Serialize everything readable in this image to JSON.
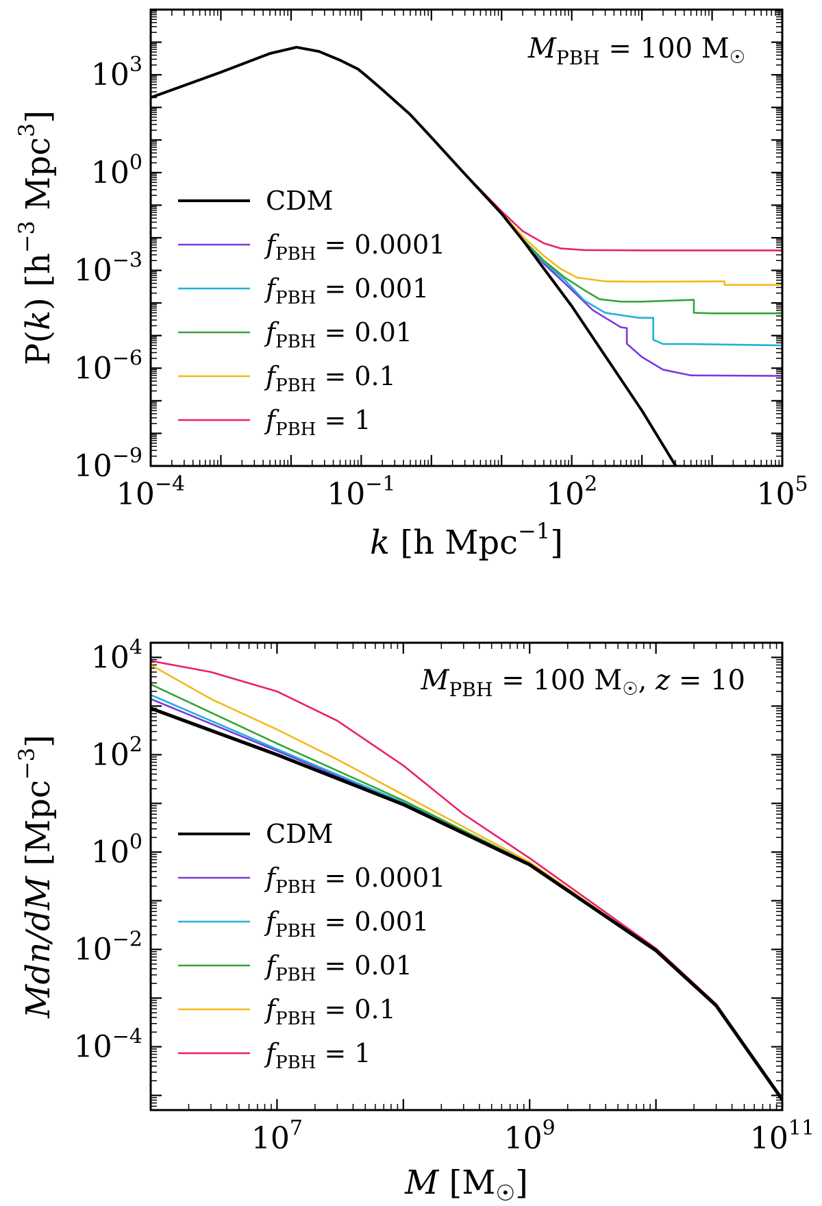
{
  "colors": {
    "CDM": "#000000",
    "f0.0001": "#7a37e0",
    "f0.001": "#1fb2d8",
    "f0.01": "#35a33a",
    "f0.1": "#f4b81a",
    "f1": "#ea1f6b"
  },
  "chart_data": [
    {
      "type": "line",
      "id": "power_spectrum",
      "title": "",
      "annotation": "M_PBH = 100 M☉",
      "annotation_parts": {
        "symbol": "M",
        "sub": "PBH",
        "eq": " = 100 M",
        "sun": "☉"
      },
      "xlabel": "k [h Mpc⁻¹]",
      "xlabel_parts": {
        "var": "k",
        "text": " [h Mpc",
        "sup": "−1",
        "close": "]"
      },
      "ylabel": "P(k) [h⁻³ Mpc³]",
      "ylabel_parts": {
        "a": "P(",
        "var": "k",
        "b": ") [h",
        "sup1": "−3",
        "c": " Mpc",
        "sup2": "3",
        "d": "]"
      },
      "xscale": "log",
      "yscale": "log",
      "xlim": [
        0.0001,
        100000
      ],
      "ylim": [
        1e-09,
        100000.0
      ],
      "xticks": [
        {
          "value": 0.0001,
          "base": "10",
          "exp": "−4"
        },
        {
          "value": 0.1,
          "base": "10",
          "exp": "−1"
        },
        {
          "value": 100,
          "base": "10",
          "exp": "2"
        },
        {
          "value": 100000,
          "base": "10",
          "exp": "5"
        }
      ],
      "yticks": [
        {
          "value": 1e-09,
          "base": "10",
          "exp": "−9"
        },
        {
          "value": 1e-06,
          "base": "10",
          "exp": "−6"
        },
        {
          "value": 0.001,
          "base": "10",
          "exp": "−3"
        },
        {
          "value": 1,
          "base": "10",
          "exp": "0"
        },
        {
          "value": 1000,
          "base": "10",
          "exp": "3"
        }
      ],
      "legend_position": "middle-left",
      "series": [
        {
          "name": "CDM",
          "label": "CDM",
          "color_key": "CDM",
          "width": 4,
          "points": [
            [
              0.0001,
              200
            ],
            [
              0.001,
              1200
            ],
            [
              0.005,
              4500
            ],
            [
              0.012,
              7000
            ],
            [
              0.025,
              5200
            ],
            [
              0.05,
              2800
            ],
            [
              0.09,
              1500
            ],
            [
              0.12,
              900
            ],
            [
              0.2,
              350
            ],
            [
              0.5,
              60
            ],
            [
              1,
              12
            ],
            [
              3,
              0.9
            ],
            [
              10,
              0.055
            ],
            [
              20,
              0.0085
            ],
            [
              100,
              8e-05
            ],
            [
              1000,
              5e-08
            ],
            [
              10000,
              1.5e-11
            ]
          ]
        },
        {
          "name": "f_PBH = 0.0001",
          "label_value": "0.0001",
          "color_key": "f0.0001",
          "width": 2.6,
          "points": [
            [
              0.0001,
              200
            ],
            [
              0.001,
              1200
            ],
            [
              0.005,
              4500
            ],
            [
              0.012,
              7000
            ],
            [
              0.025,
              5200
            ],
            [
              0.05,
              2800
            ],
            [
              0.09,
              1500
            ],
            [
              0.12,
              900
            ],
            [
              0.2,
              350
            ],
            [
              0.5,
              60
            ],
            [
              1,
              12
            ],
            [
              3,
              0.9
            ],
            [
              10,
              0.055
            ],
            [
              20,
              0.0086
            ],
            [
              40,
              0.0016
            ],
            [
              80,
              0.0004
            ],
            [
              200,
              6e-05
            ],
            [
              500,
              1.8e-05
            ],
            [
              610,
              1.7e-05
            ],
            [
              610,
              5.6e-06
            ],
            [
              1000,
              2.2e-06
            ],
            [
              2000,
              9e-07
            ],
            [
              5000,
              6e-07
            ],
            [
              100000,
              5.8e-07
            ]
          ]
        },
        {
          "name": "f_PBH = 0.001",
          "label_value": "0.001",
          "color_key": "f0.001",
          "width": 2.6,
          "points": [
            [
              0.0001,
              200
            ],
            [
              0.001,
              1200
            ],
            [
              0.005,
              4500
            ],
            [
              0.012,
              7000
            ],
            [
              0.025,
              5200
            ],
            [
              0.05,
              2800
            ],
            [
              0.09,
              1500
            ],
            [
              0.12,
              900
            ],
            [
              0.2,
              350
            ],
            [
              0.5,
              60
            ],
            [
              1,
              12
            ],
            [
              3,
              0.9
            ],
            [
              10,
              0.055
            ],
            [
              20,
              0.0088
            ],
            [
              40,
              0.0018
            ],
            [
              80,
              0.0005
            ],
            [
              150,
              0.00012
            ],
            [
              300,
              5e-05
            ],
            [
              900,
              3.5e-05
            ],
            [
              1450,
              3.5e-05
            ],
            [
              1450,
              7.5e-06
            ],
            [
              2000,
              5.5e-06
            ],
            [
              5000,
              5.5e-06
            ],
            [
              100000,
              5e-06
            ]
          ]
        },
        {
          "name": "f_PBH = 0.01",
          "label_value": "0.01",
          "color_key": "f0.01",
          "width": 2.6,
          "points": [
            [
              0.0001,
              200
            ],
            [
              0.001,
              1200
            ],
            [
              0.005,
              4500
            ],
            [
              0.012,
              7000
            ],
            [
              0.025,
              5200
            ],
            [
              0.05,
              2800
            ],
            [
              0.09,
              1500
            ],
            [
              0.12,
              900
            ],
            [
              0.2,
              350
            ],
            [
              0.5,
              60
            ],
            [
              1,
              12
            ],
            [
              3,
              0.9
            ],
            [
              10,
              0.055
            ],
            [
              20,
              0.009
            ],
            [
              40,
              0.002
            ],
            [
              80,
              0.0006
            ],
            [
              150,
              0.00025
            ],
            [
              250,
              0.00013
            ],
            [
              500,
              0.00011
            ],
            [
              1000,
              0.00011
            ],
            [
              5500,
              0.000125
            ],
            [
              5500,
              5e-05
            ],
            [
              10000,
              4.8e-05
            ],
            [
              100000,
              4.8e-05
            ]
          ]
        },
        {
          "name": "f_PBH = 0.1",
          "label_value": "0.1",
          "color_key": "f0.1",
          "width": 2.6,
          "points": [
            [
              0.0001,
              200
            ],
            [
              0.001,
              1200
            ],
            [
              0.005,
              4500
            ],
            [
              0.012,
              7000
            ],
            [
              0.025,
              5200
            ],
            [
              0.05,
              2800
            ],
            [
              0.09,
              1500
            ],
            [
              0.12,
              900
            ],
            [
              0.2,
              350
            ],
            [
              0.5,
              60
            ],
            [
              1,
              12
            ],
            [
              3,
              0.9
            ],
            [
              10,
              0.058
            ],
            [
              20,
              0.011
            ],
            [
              40,
              0.0028
            ],
            [
              70,
              0.0011
            ],
            [
              120,
              0.0006
            ],
            [
              300,
              0.00046
            ],
            [
              1000,
              0.00045
            ],
            [
              15000,
              0.00046
            ],
            [
              15000,
              0.00036
            ],
            [
              100000,
              0.00036
            ]
          ]
        },
        {
          "name": "f_PBH = 1",
          "label_value": "1",
          "color_key": "f1",
          "width": 2.6,
          "points": [
            [
              0.0001,
              200
            ],
            [
              0.001,
              1200
            ],
            [
              0.005,
              4500
            ],
            [
              0.012,
              7000
            ],
            [
              0.025,
              5200
            ],
            [
              0.05,
              2800
            ],
            [
              0.09,
              1500
            ],
            [
              0.12,
              900
            ],
            [
              0.2,
              350
            ],
            [
              0.5,
              60
            ],
            [
              1,
              12
            ],
            [
              3,
              0.92
            ],
            [
              10,
              0.065
            ],
            [
              20,
              0.016
            ],
            [
              40,
              0.0068
            ],
            [
              70,
              0.0047
            ],
            [
              150,
              0.0042
            ],
            [
              1000,
              0.0041
            ],
            [
              100000,
              0.0041
            ]
          ]
        }
      ]
    },
    {
      "type": "line",
      "id": "mass_function",
      "title": "",
      "annotation": "M_PBH = 100 M☉, z = 10",
      "annotation_parts": {
        "symbol": "M",
        "sub": "PBH",
        "eq": " = 100 M",
        "sun": "☉",
        "tail": ", ",
        "zvar": "z",
        "zval": " = 10"
      },
      "xlabel": "M [M☉]",
      "xlabel_parts": {
        "var": "M",
        "text": " [M",
        "sun": "☉",
        "close": "]"
      },
      "ylabel": "Mdn/dM [Mpc⁻³]",
      "ylabel_parts": {
        "var": "Mdn/dM",
        "text": " [Mpc",
        "sup": "−3",
        "close": "]"
      },
      "xscale": "log",
      "yscale": "log",
      "xlim": [
        1000000,
        100000000000
      ],
      "ylim": [
        5e-06,
        20000
      ],
      "xticks": [
        {
          "value": 10000000,
          "base": "10",
          "exp": "7"
        },
        {
          "value": 1000000000,
          "base": "10",
          "exp": "9"
        },
        {
          "value": 100000000000,
          "base": "10",
          "exp": "11"
        }
      ],
      "yticks": [
        {
          "value": 0.0001,
          "base": "10",
          "exp": "−4"
        },
        {
          "value": 0.01,
          "base": "10",
          "exp": "−2"
        },
        {
          "value": 1,
          "base": "10",
          "exp": "0"
        },
        {
          "value": 100,
          "base": "10",
          "exp": "2"
        },
        {
          "value": 10000,
          "base": "10",
          "exp": "4"
        }
      ],
      "legend_position": "middle-left",
      "series": [
        {
          "name": "CDM",
          "label": "CDM",
          "color_key": "CDM",
          "width": 5,
          "points": [
            [
              1000000,
              900
            ],
            [
              10000000,
              100
            ],
            [
              100000000,
              9.5
            ],
            [
              1000000000,
              0.55
            ],
            [
              10000000000,
              0.0095
            ],
            [
              30000000000,
              0.0007
            ],
            [
              100000000000,
              8.2e-06
            ]
          ]
        },
        {
          "name": "f_PBH = 0.0001",
          "label_value": "0.0001",
          "color_key": "f0.0001",
          "width": 2.6,
          "points": [
            [
              1000000,
              1400
            ],
            [
              10000000,
              120
            ],
            [
              100000000,
              10
            ],
            [
              1000000000,
              0.55
            ],
            [
              10000000000,
              0.0095
            ],
            [
              30000000000,
              0.0007
            ],
            [
              100000000000,
              8.2e-06
            ]
          ]
        },
        {
          "name": "f_PBH = 0.001",
          "label_value": "0.001",
          "color_key": "f0.001",
          "width": 2.6,
          "points": [
            [
              1000000,
              1700
            ],
            [
              10000000,
              130
            ],
            [
              100000000,
              10.5
            ],
            [
              1000000000,
              0.56
            ],
            [
              10000000000,
              0.0095
            ],
            [
              30000000000,
              0.0007
            ],
            [
              100000000000,
              8.2e-06
            ]
          ]
        },
        {
          "name": "f_PBH = 0.01",
          "label_value": "0.01",
          "color_key": "f0.01",
          "width": 2.6,
          "points": [
            [
              1000000,
              2800
            ],
            [
              10000000,
              170
            ],
            [
              100000000,
              11.5
            ],
            [
              1000000000,
              0.58
            ],
            [
              10000000000,
              0.0096
            ],
            [
              30000000000,
              0.0007
            ],
            [
              100000000000,
              8.2e-06
            ]
          ]
        },
        {
          "name": "f_PBH = 0.1",
          "label_value": "0.1",
          "color_key": "f0.1",
          "width": 2.6,
          "points": [
            [
              1000000,
              7000
            ],
            [
              3000000,
              1400
            ],
            [
              10000000,
              330
            ],
            [
              30000000,
              80
            ],
            [
              100000000,
              15
            ],
            [
              1000000000,
              0.62
            ],
            [
              10000000000,
              0.0098
            ],
            [
              30000000000,
              0.0007
            ],
            [
              100000000000,
              8.2e-06
            ]
          ]
        },
        {
          "name": "f_PBH = 1",
          "label_value": "1",
          "color_key": "f1",
          "width": 2.6,
          "points": [
            [
              1000000,
              8500
            ],
            [
              3000000,
              5000
            ],
            [
              10000000,
              2000
            ],
            [
              30000000,
              500
            ],
            [
              100000000,
              60
            ],
            [
              300000000,
              6
            ],
            [
              1000000000,
              0.75
            ],
            [
              10000000000,
              0.0105
            ],
            [
              30000000000,
              0.00075
            ],
            [
              100000000000,
              8.5e-06
            ]
          ]
        }
      ]
    }
  ]
}
